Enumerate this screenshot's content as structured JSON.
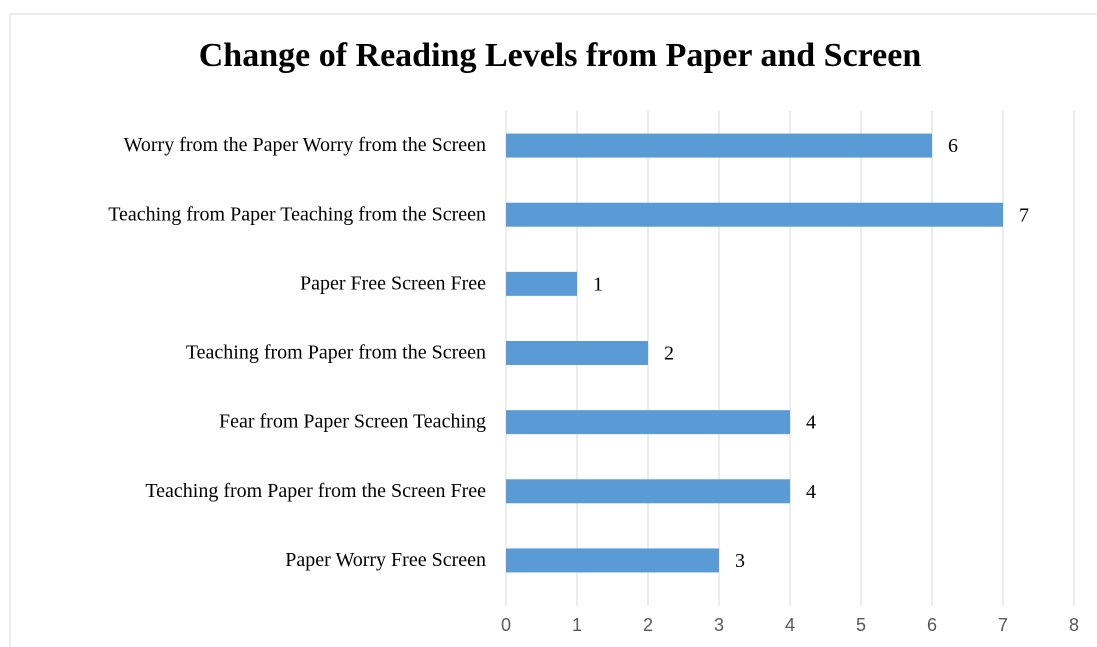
{
  "chart_data": {
    "type": "bar",
    "orientation": "horizontal",
    "title": "Change of Reading Levels from Paper and Screen",
    "categories": [
      "Worry from the Paper Worry from the Screen",
      "Teaching from Paper Teaching from the Screen",
      "Paper Free Screen Free",
      "Teaching from Paper from the Screen",
      "Fear from Paper Screen Teaching",
      "Teaching from Paper from the Screen Free",
      "Paper Worry Free Screen"
    ],
    "values": [
      6,
      7,
      1,
      2,
      4,
      4,
      3
    ],
    "color": "#5b9bd5",
    "xlim": [
      0,
      8
    ],
    "xticks": [
      0,
      1,
      2,
      3,
      4,
      5,
      6,
      7,
      8
    ],
    "grid": true
  }
}
